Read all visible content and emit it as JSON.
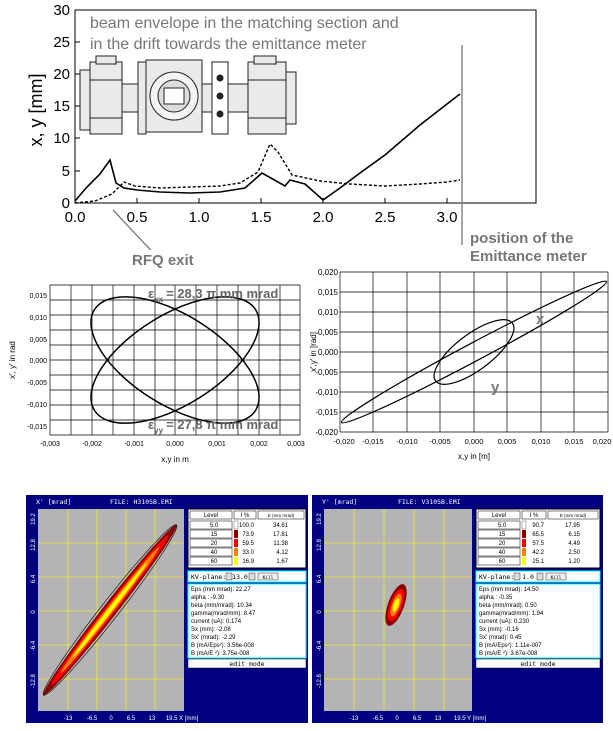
{
  "envelope": {
    "title_line1": "beam envelope in the matching section and",
    "title_line2": "in the drift towards the emittance meter",
    "ylabel": "x, y [mm]",
    "yticks": [
      "0",
      "5",
      "10",
      "15",
      "20",
      "25",
      "30"
    ],
    "xticks": [
      "0.0",
      "0.5",
      "1.0",
      "1.5",
      "2.0",
      "2.5",
      "3.0"
    ]
  },
  "annotations": {
    "rfq_exit": "RFQ exit",
    "position_line1": "position of the",
    "position_line2": "Emittance meter"
  },
  "phase_left": {
    "ylabel": "x', y' in rad",
    "xlabel": "x,y in m",
    "eps_xx_sym": "ε",
    "eps_xx_sub": "xx",
    "eps_xx_value": "= 28,3 π mm mrad",
    "eps_yy_sym": "ε",
    "eps_yy_sub": "yy",
    "eps_yy_value": "= 27,8 π mm mrad",
    "yticks": [
      "0,015",
      "0,010",
      "0,005",
      "0,000",
      "-0,005",
      "-0,010",
      "-0,015"
    ],
    "xticks": [
      "-0,003",
      "-0,002",
      "-0,001",
      "0,000",
      "0,001",
      "0,002",
      "0,003"
    ]
  },
  "phase_right": {
    "ylabel": "x',y' in [rad]",
    "xlabel": "x,y in [m]",
    "label_x": "x",
    "label_y": "y",
    "yticks": [
      "0,020",
      "0,015",
      "0,010",
      "0,005",
      "0,000",
      "-0,005",
      "-0,010",
      "-0,015",
      "-0,020"
    ],
    "xticks": [
      "-0,020",
      "-0,015",
      "-0,010",
      "-0,005",
      "0,000",
      "0,005",
      "0,010",
      "0,015",
      "0,020"
    ]
  },
  "emi_left": {
    "header_axis": "X' [mrad]",
    "file": "FILE: H3105B.EMI",
    "yticks": [
      "19.2",
      "12.8",
      "6.4",
      "0",
      "-6.4",
      "-12.8"
    ],
    "xticks": [
      "-13",
      "-6.5",
      "0",
      "6.5",
      "13",
      "19.5 X [mm]"
    ],
    "table_headers": [
      "Level",
      "I %",
      "E (mm mrad)"
    ],
    "levels": [
      {
        "level": "5.0",
        "i": "100.0",
        "e": "34.61"
      },
      {
        "level": "15",
        "i": "73.9",
        "e": "17.81"
      },
      {
        "level": "20",
        "i": "59.5",
        "e": "11.38"
      },
      {
        "level": "40",
        "i": "33.0",
        "e": "4.12"
      },
      {
        "level": "60",
        "i": "16.9",
        "e": "1.67"
      }
    ],
    "kv_label": "KV-plane:",
    "kv_value": "13.0",
    "kv_btn": "Kill",
    "params": [
      "Eps  (mm mrad): 22.27",
      "alpha        : -9.30",
      "beta (mm/mrad): 10.34",
      "gamma(mrad/mm): 8.47",
      "current   (uA): 0.174",
      "Sx        (mm): -2.08",
      "Sx'     (mrad): -2.29",
      "B    (mA/Eps²): 3.56e-008",
      "B    (mA/E ²): 3.75e-008"
    ],
    "mode": "edit mode"
  },
  "emi_right": {
    "header_axis": "Y' [mrad]",
    "file": "FILE: V3105B.EMI",
    "yticks": [
      "19.2",
      "12.8",
      "6.4",
      "0",
      "-6.4",
      "-12.8"
    ],
    "xticks": [
      "-13",
      "-6.5",
      "0",
      "6.5",
      "13",
      "19.5 Y [mm]"
    ],
    "table_headers": [
      "Level",
      "I %",
      "E (mm mrad)"
    ],
    "levels": [
      {
        "level": "5.0",
        "i": "90.7",
        "e": "17.95"
      },
      {
        "level": "15",
        "i": "65.5",
        "e": "6.15"
      },
      {
        "level": "20",
        "i": "57.5",
        "e": "4.49"
      },
      {
        "level": "40",
        "i": "42.2",
        "e": "2.50"
      },
      {
        "level": "60",
        "i": "25.1",
        "e": "1.20"
      }
    ],
    "kv_label": "KV-plane:",
    "kv_value": "1.0",
    "kv_btn": "Kill",
    "params": [
      "Eps  (mm mrad): 14.50",
      "alpha        : -0.35",
      "beta (mm/mrad): 0.50",
      "gamma(mrad/mm): 1.94",
      "current   (uA): 0.230",
      "Sx        (mm): -0.16",
      "Sx'     (mrad): 0.45",
      "B    (mA/Eps²): 1.11e-007",
      "B    (mA/E ²): 3.67e-008"
    ],
    "mode": "edit mode"
  },
  "colors": {
    "level": [
      "#ffffff",
      "#8b0000",
      "#ff0000",
      "#ff8000",
      "#ffff00"
    ],
    "emi_bg": "#000080",
    "plot_bg": "#b4b4b4",
    "grid": "#ffff00",
    "accent": "#00ffff"
  }
}
